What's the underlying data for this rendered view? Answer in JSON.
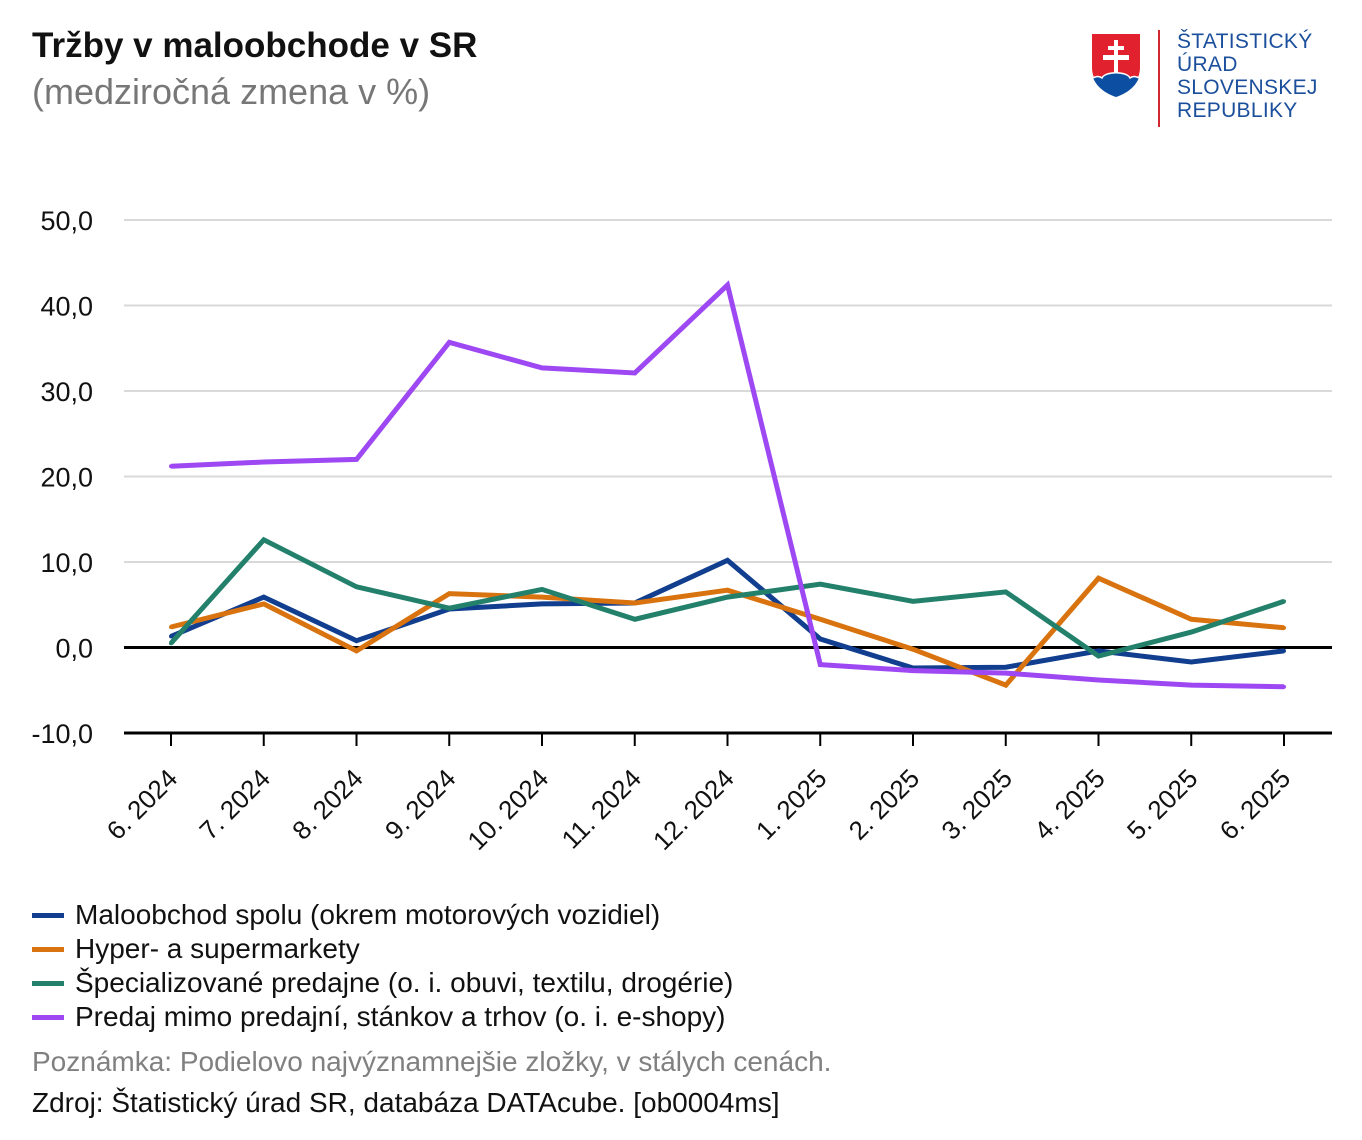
{
  "chart_data": {
    "type": "line",
    "title": "Tržby v maloobchode v SR",
    "subtitle": "(medziročná zmena v %)",
    "categories": [
      "6. 2024",
      "7. 2024",
      "8. 2024",
      "9. 2024",
      "10. 2024",
      "11. 2024",
      "12. 2024",
      "1. 2025",
      "2. 2025",
      "3. 2025",
      "4. 2025",
      "5. 2025",
      "6. 2025"
    ],
    "y_ticks": [
      50,
      40,
      30,
      20,
      10,
      0,
      -10
    ],
    "y_tick_labels": [
      "50,0",
      "40,0",
      "30,0",
      "20,0",
      "10,0",
      "0,0",
      "-10,0"
    ],
    "ylim": [
      -10,
      50
    ],
    "grid": true,
    "legend_position": "bottom-left",
    "grid_color": "#d9d9d9",
    "axis_color": "#000000",
    "text_color": "#111111",
    "series": [
      {
        "name": "Maloobchod spolu (okrem motorových vozidiel)",
        "color": "#113e8e",
        "values": [
          1.3,
          5.9,
          0.8,
          4.5,
          5.1,
          5.2,
          10.2,
          1.0,
          -2.4,
          -2.3,
          -0.4,
          -1.7,
          -0.4
        ]
      },
      {
        "name": "Hyper- a supermarkety",
        "color": "#d8730f",
        "values": [
          2.4,
          5.1,
          -0.4,
          6.3,
          5.9,
          5.2,
          6.7,
          3.3,
          -0.2,
          -4.4,
          8.1,
          3.3,
          2.3
        ]
      },
      {
        "name": "Špecializované predajne (o. i. obuvi, textilu, drogérie)",
        "color": "#23806b",
        "values": [
          0.5,
          12.6,
          7.1,
          4.6,
          6.8,
          3.3,
          5.9,
          7.4,
          5.4,
          6.5,
          -1.0,
          1.8,
          5.4
        ]
      },
      {
        "name": "Predaj mimo predajní, stánkov a trhov (o. i. e-shopy)",
        "color": "#9d48f3",
        "values": [
          21.2,
          21.7,
          22.0,
          35.7,
          32.7,
          32.1,
          42.4,
          -2.0,
          -2.7,
          -3.0,
          -3.8,
          -4.4,
          -4.6
        ]
      }
    ]
  },
  "logo": {
    "icon": "slovak-coat-of-arms-icon",
    "lines": [
      "ŠTATISTICKÝ",
      "ÚRAD",
      "SLOVENSKEJ",
      "REPUBLIKY"
    ],
    "text_color": "#1b4f9c",
    "divider_color": "#d0282e",
    "shield_red": "#e1212d",
    "shield_blue": "#0b4ea2"
  },
  "footer": {
    "note": "Poznámka: Podielovo najvýznamnejšie zložky, v stálych cenách.",
    "source": "Zdroj: Štatistický úrad SR, databáza DATAcube. [ob0004ms]"
  }
}
